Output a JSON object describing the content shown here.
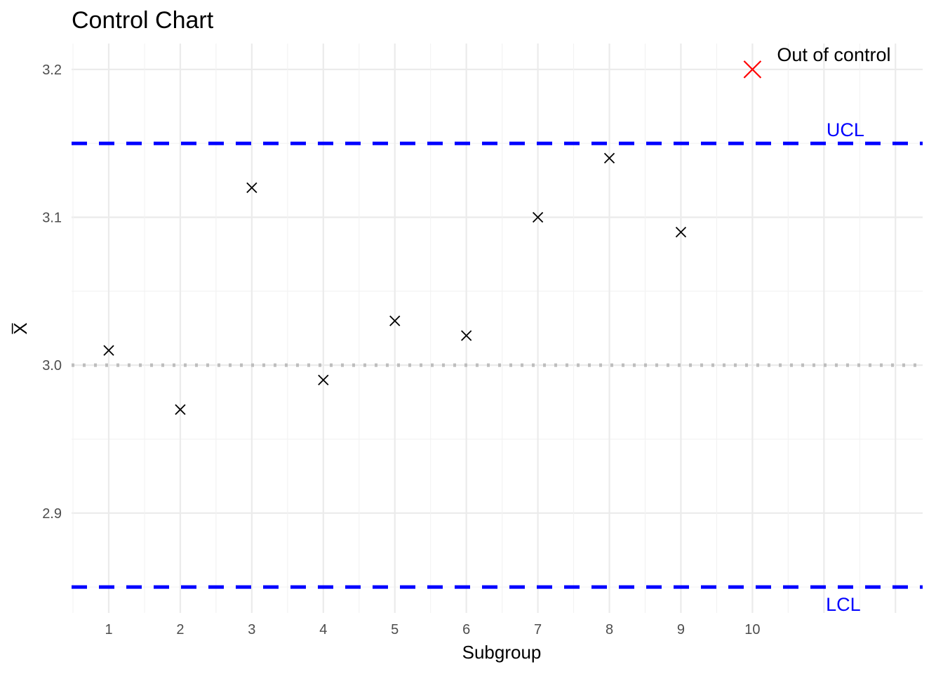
{
  "chart_data": {
    "type": "scatter",
    "title": "Control Chart",
    "xlabel": "Subgroup",
    "ylabel": "X̅",
    "x": [
      1,
      2,
      3,
      4,
      5,
      6,
      7,
      8,
      9,
      10
    ],
    "y": [
      3.01,
      2.97,
      3.12,
      2.99,
      3.03,
      3.02,
      3.1,
      3.14,
      3.09,
      3.2
    ],
    "x_ticks": [
      "1",
      "2",
      "3",
      "4",
      "5",
      "6",
      "7",
      "8",
      "9",
      "10"
    ],
    "y_ticks": [
      "2.9",
      "3.0",
      "3.1",
      "3.2"
    ],
    "xlim": [
      0.48,
      12.38
    ],
    "ylim": [
      2.8325,
      3.2175
    ],
    "center_line": 3.0,
    "ucl": 3.15,
    "lcl": 2.85,
    "ucl_label": "UCL",
    "lcl_label": "LCL",
    "out_of_control_label": "Out of control",
    "marker_color": "#000000",
    "out_of_control_color": "#ff0000",
    "limit_color": "#0000ff",
    "center_color": "#bebebe",
    "grid": true
  }
}
